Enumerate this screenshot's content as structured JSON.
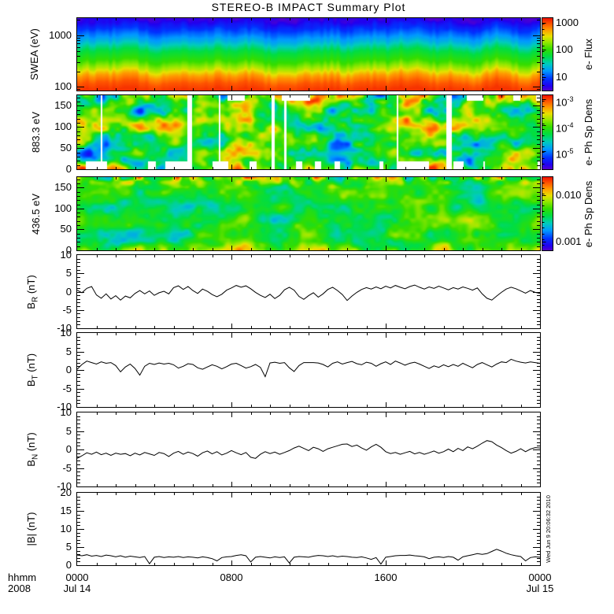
{
  "title": "STEREO-B IMPACT Summary Plot",
  "watermark": "Wed Jun 9 20:06:32 2010",
  "footer": {
    "format_label": "hhmm",
    "year_label": "2008"
  },
  "x_axis": {
    "range_hours": 24,
    "major_step_hours": 8,
    "minor_step_hours": 1,
    "labels": [
      {
        "time": "0000",
        "date": "Jul 14",
        "h": 0
      },
      {
        "time": "0800",
        "h": 8
      },
      {
        "time": "1600",
        "h": 16
      },
      {
        "time": "0000",
        "date": "Jul 15",
        "h": 24
      }
    ]
  },
  "colors": {
    "axis": "#000000",
    "background": "#ffffff",
    "trace": "#000000",
    "colormap": [
      [
        0.0,
        "#5500cc"
      ],
      [
        0.06,
        "#2200ee"
      ],
      [
        0.16,
        "#0033ff"
      ],
      [
        0.27,
        "#0099ff"
      ],
      [
        0.37,
        "#00ccbb"
      ],
      [
        0.47,
        "#00dd44"
      ],
      [
        0.57,
        "#33dd00"
      ],
      [
        0.67,
        "#99e800"
      ],
      [
        0.75,
        "#e8e000"
      ],
      [
        0.84,
        "#ff9900"
      ],
      [
        0.92,
        "#ff5500"
      ],
      [
        1.0,
        "#ee1100"
      ]
    ]
  },
  "chart_data": [
    {
      "id": "swea",
      "type": "heatmap",
      "ylabel": "SWEA (eV)",
      "yscale": "log",
      "yrange": [
        85,
        2180
      ],
      "yticks": [
        {
          "label": "1000",
          "value": 1000
        },
        {
          "label": "100",
          "value": 100
        }
      ],
      "yminor_values": [
        2000,
        900,
        800,
        700,
        600,
        500,
        400,
        300,
        200,
        90
      ],
      "colorbar": {
        "rotlabel": "e- Flux",
        "ticks": [
          {
            "text": "1000",
            "f": 0.07
          },
          {
            "text": "100",
            "f": 0.44
          },
          {
            "text": "10",
            "f": 0.82
          }
        ]
      },
      "heat": {
        "kind": "gradient",
        "seed": 11,
        "jitter": 0.05,
        "profile": [
          [
            0,
            0.06
          ],
          [
            0.3,
            0.3
          ],
          [
            0.45,
            0.47
          ],
          [
            0.6,
            0.58
          ],
          [
            0.7,
            0.7
          ],
          [
            0.8,
            0.84
          ],
          [
            0.9,
            0.92
          ],
          [
            1,
            0.96
          ]
        ]
      }
    },
    {
      "id": "e883",
      "type": "heatmap",
      "ylabel": "883.3 eV",
      "yscale": "linear",
      "yrange": [
        0,
        175
      ],
      "yminor_step": 10,
      "yticks": [
        {
          "label": "0",
          "value": 0
        },
        {
          "label": "50",
          "value": 50
        },
        {
          "label": "100",
          "value": 100
        },
        {
          "label": "150",
          "value": 150
        }
      ],
      "colorbar": {
        "rotlabel": "e- Ph Sp Dens",
        "ticks": [
          {
            "text": "10",
            "sup": "-3",
            "f": 0.05
          },
          {
            "text": "10",
            "sup": "-4",
            "f": 0.4
          },
          {
            "text": "10",
            "sup": "-5",
            "f": 0.75
          }
        ]
      },
      "heat": {
        "kind": "blobs",
        "seed": 23,
        "base": 0.52,
        "amp": 0.44,
        "topBand": 0.18,
        "topBoost": 0.32,
        "bottomBoost": 0.22,
        "gaps": true
      }
    },
    {
      "id": "e436",
      "type": "heatmap",
      "ylabel": "436.5 eV",
      "yscale": "linear",
      "yrange": [
        0,
        175
      ],
      "yminor_step": 10,
      "yticks": [
        {
          "label": "0",
          "value": 0
        },
        {
          "label": "50",
          "value": 50
        },
        {
          "label": "100",
          "value": 100
        },
        {
          "label": "150",
          "value": 150
        }
      ],
      "colorbar": {
        "rotlabel": "e- Ph Sp Dens",
        "ticks": [
          {
            "text": "0.010",
            "f": 0.25
          },
          {
            "text": "0.001",
            "f": 0.88
          }
        ]
      },
      "heat": {
        "kind": "blobs",
        "seed": 47,
        "base": 0.52,
        "amp": 0.24,
        "topBand": 0.16,
        "topBoost": 0.42,
        "bottomBoost": 0.2,
        "gaps": false
      }
    },
    {
      "id": "br",
      "type": "line",
      "ylabel_main": "B",
      "ylabel_sub": "R",
      "ylabel_unit": " (nT)",
      "yrange": [
        -10,
        10
      ],
      "ytick_step": 5,
      "yminor_step": 1,
      "values": [
        0.4,
        -0.3,
        0.9,
        1.4,
        -0.9,
        -1.8,
        -0.6,
        -2.0,
        -1.1,
        -2.3,
        -1.2,
        -1.7,
        -0.5,
        0.3,
        -0.6,
        0.2,
        -1.0,
        -0.3,
        0.1,
        -0.6,
        1.1,
        1.6,
        0.6,
        1.4,
        0.3,
        -0.5,
        0.7,
        0.1,
        -0.8,
        -1.4,
        -0.7,
        0.4,
        1.0,
        1.7,
        1.2,
        1.6,
        0.8,
        -0.2,
        -1.0,
        -1.6,
        -0.7,
        -1.9,
        -1.0,
        0.5,
        1.2,
        0.4,
        -1.3,
        -2.1,
        -1.1,
        -0.3,
        -1.5,
        -0.6,
        0.6,
        1.2,
        0.3,
        -0.8,
        -2.4,
        -1.2,
        -0.2,
        0.6,
        1.1,
        0.7,
        1.3,
        0.8,
        1.5,
        1.0,
        1.7,
        1.2,
        0.8,
        1.4,
        1.8,
        1.2,
        0.7,
        1.3,
        0.9,
        1.5,
        1.0,
        0.5,
        1.1,
        0.7,
        1.3,
        0.9,
        0.4,
        1.0,
        -0.6,
        -1.8,
        -2.3,
        -1.2,
        -0.2,
        0.7,
        1.2,
        0.8,
        0.2,
        -0.4,
        0.3,
        -0.2,
        -0.5
      ]
    },
    {
      "id": "bt",
      "type": "line",
      "ylabel_main": "B",
      "ylabel_sub": "T",
      "ylabel_unit": " (nT)",
      "yrange": [
        -10,
        10
      ],
      "ytick_step": 5,
      "yminor_step": 1,
      "values": [
        0.2,
        1.5,
        2.4,
        2.0,
        1.6,
        2.2,
        1.8,
        2.0,
        1.2,
        -0.5,
        0.8,
        1.6,
        0.4,
        -1.4,
        1.0,
        1.8,
        1.5,
        1.9,
        1.6,
        1.8,
        1.4,
        0.5,
        1.0,
        1.7,
        1.5,
        0.6,
        0.2,
        0.8,
        1.4,
        1.0,
        0.3,
        0.9,
        1.6,
        1.8,
        1.2,
        0.5,
        0.9,
        1.5,
        0.7,
        -1.8,
        1.9,
        2.1,
        1.8,
        2.0,
        0.6,
        -0.4,
        1.2,
        2.0,
        2.0,
        2.0,
        1.9,
        1.5,
        0.8,
        1.8,
        2.2,
        1.6,
        2.0,
        2.3,
        1.7,
        1.4,
        2.1,
        1.8,
        1.0,
        1.7,
        2.2,
        1.5,
        2.4,
        1.9,
        1.3,
        1.8,
        2.1,
        1.6,
        1.0,
        0.4,
        1.1,
        0.7,
        1.4,
        0.9,
        1.5,
        1.0,
        1.8,
        1.2,
        0.6,
        1.5,
        2.0,
        1.4,
        0.8,
        1.6,
        2.2,
        2.0,
        2.9,
        2.4,
        2.1,
        1.9,
        2.2,
        2.0,
        1.8
      ]
    },
    {
      "id": "bn",
      "type": "line",
      "ylabel_main": "B",
      "ylabel_sub": "N",
      "ylabel_unit": " (nT)",
      "yrange": [
        -10,
        10
      ],
      "ytick_step": 5,
      "yminor_step": 1,
      "values": [
        -2.4,
        -1.7,
        -0.9,
        -1.3,
        -0.7,
        -1.4,
        -1.0,
        -1.6,
        -1.0,
        -1.3,
        -1.1,
        -1.7,
        -1.0,
        -1.5,
        -0.8,
        -1.2,
        -1.6,
        -0.8,
        -1.1,
        -1.9,
        -1.0,
        -0.5,
        -1.3,
        -0.7,
        -1.1,
        -1.8,
        -0.9,
        -0.4,
        -1.2,
        -0.6,
        -1.5,
        -1.0,
        -0.3,
        -0.9,
        -1.4,
        -0.8,
        -2.1,
        -2.4,
        -1.3,
        -0.6,
        -1.1,
        -0.7,
        -1.3,
        -0.8,
        -0.3,
        0.4,
        0.9,
        0.3,
        -0.3,
        0.6,
        0.2,
        -0.5,
        0.2,
        0.6,
        1.0,
        1.4,
        1.5,
        0.8,
        1.2,
        0.4,
        -0.2,
        0.7,
        1.4,
        0.6,
        -0.6,
        -1.1,
        -0.8,
        -1.3,
        -0.9,
        -0.5,
        -1.2,
        -0.8,
        -1.3,
        -0.9,
        -0.4,
        -1.0,
        -0.6,
        0.1,
        -0.6,
        0.3,
        -0.3,
        0.7,
        0.2,
        0.9,
        1.7,
        2.4,
        2.1,
        1.2,
        0.5,
        -0.3,
        -1.0,
        -0.5,
        0.2,
        -0.6,
        0.1,
        0.5,
        0.4
      ]
    },
    {
      "id": "bmag",
      "type": "line",
      "ylabel_main": "|B|",
      "ylabel_sub": "",
      "ylabel_unit": " (nT)",
      "yrange": [
        0,
        20
      ],
      "ytick_step": 5,
      "yminor_step": 1,
      "values": [
        2.8,
        2.6,
        2.9,
        2.5,
        2.7,
        2.4,
        2.8,
        2.6,
        2.3,
        2.6,
        2.2,
        2.5,
        2.3,
        2.1,
        2.4,
        0.4,
        2.2,
        2.4,
        2.1,
        2.3,
        2.2,
        2.4,
        2.1,
        2.3,
        2.2,
        2.0,
        2.3,
        2.1,
        1.8,
        1.2,
        2.1,
        2.3,
        2.4,
        2.7,
        2.9,
        2.6,
        0.9,
        2.2,
        2.4,
        2.2,
        2.0,
        2.3,
        2.1,
        2.3,
        0.6,
        2.2,
        2.4,
        2.3,
        2.2,
        2.5,
        2.7,
        2.6,
        2.4,
        2.6,
        2.3,
        2.5,
        2.4,
        2.2,
        2.1,
        2.3,
        2.0,
        1.6,
        2.1,
        0.3,
        2.2,
        2.4,
        2.6,
        2.7,
        2.7,
        2.8,
        2.6,
        2.5,
        2.3,
        1.8,
        2.2,
        2.3,
        2.1,
        2.4,
        2.2,
        1.4,
        2.3,
        2.6,
        2.9,
        3.2,
        3.0,
        3.2,
        3.8,
        4.4,
        3.9,
        3.3,
        2.9,
        2.6,
        2.4,
        1.2,
        2.1,
        2.3,
        2.2
      ]
    }
  ]
}
